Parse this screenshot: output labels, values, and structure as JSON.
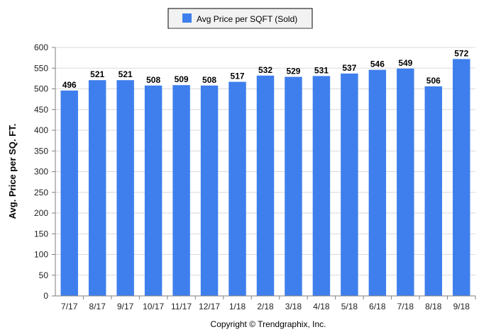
{
  "chart_data": {
    "type": "bar",
    "categories": [
      "7/17",
      "8/17",
      "9/17",
      "10/17",
      "11/17",
      "12/17",
      "1/18",
      "2/18",
      "3/18",
      "4/18",
      "5/18",
      "6/18",
      "7/18",
      "8/18",
      "9/18"
    ],
    "series": [
      {
        "name": "Avg Price per SQFT (Sold)",
        "values": [
          496,
          521,
          521,
          508,
          509,
          508,
          517,
          532,
          529,
          531,
          537,
          546,
          549,
          506,
          572
        ]
      }
    ],
    "data_labels": [
      "496",
      "521",
      "521",
      "508",
      "509",
      "508",
      "517",
      "532",
      "529",
      "531",
      "537",
      "546",
      "549",
      "506",
      "572"
    ],
    "ylabel": "Avg. Price per SQ. FT.",
    "xlabel": "",
    "ylim": [
      0,
      600
    ],
    "yticks": [
      "0",
      "50",
      "100",
      "150",
      "200",
      "250",
      "300",
      "350",
      "400",
      "450",
      "500",
      "550",
      "600"
    ],
    "grid": true,
    "legend_position": "top-center",
    "bar_color": "#3F7FED",
    "grid_color": "#D9D9D9",
    "axis_color": "#7F7F7F"
  },
  "footer": {
    "copyright": "Copyright © Trendgraphix, Inc."
  }
}
